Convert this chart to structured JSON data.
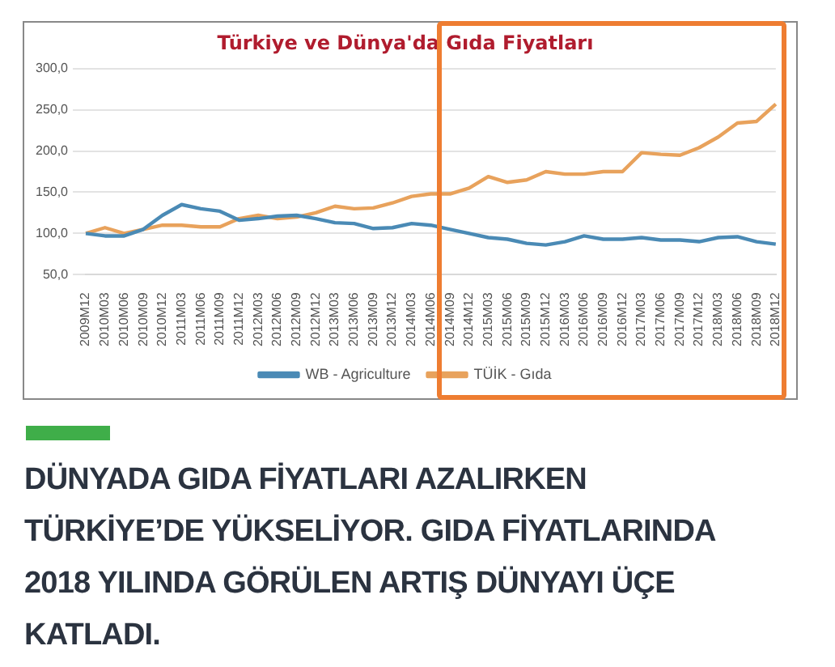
{
  "chart_data": {
    "type": "line",
    "title": "Türkiye ve Dünya'da Gıda Fiyatları",
    "categories": [
      "2009M12",
      "2010M03",
      "2010M06",
      "2010M09",
      "2010M12",
      "2011M03",
      "2011M06",
      "2011M09",
      "2011M12",
      "2012M03",
      "2012M06",
      "2012M09",
      "2012M12",
      "2013M03",
      "2013M06",
      "2013M09",
      "2013M12",
      "2014M03",
      "2014M06",
      "2014M09",
      "2014M12",
      "2015M03",
      "2015M06",
      "2015M09",
      "2015M12",
      "2016M03",
      "2016M06",
      "2016M09",
      "2016M12",
      "2017M03",
      "2017M06",
      "2017M09",
      "2017M12",
      "2018M03",
      "2018M06",
      "2018M09",
      "2018M12"
    ],
    "series": [
      {
        "name": "WB - Agriculture",
        "color": "#4a8ab5",
        "values": [
          100,
          97,
          97,
          105,
          122,
          135,
          130,
          127,
          116,
          118,
          121,
          122,
          118,
          113,
          112,
          106,
          107,
          112,
          110,
          105,
          100,
          95,
          93,
          88,
          86,
          90,
          97,
          93,
          93,
          95,
          92,
          92,
          90,
          95,
          96,
          90,
          87
        ]
      },
      {
        "name": "TÜİK - Gıda",
        "color": "#e8a25c",
        "values": [
          100,
          107,
          100,
          105,
          110,
          110,
          108,
          108,
          118,
          122,
          118,
          120,
          125,
          133,
          130,
          131,
          137,
          145,
          148,
          148,
          155,
          169,
          162,
          165,
          175,
          172,
          172,
          175,
          175,
          198,
          196,
          195,
          204,
          217,
          234,
          236,
          257
        ]
      }
    ],
    "ylim": [
      50,
      300
    ],
    "yticks": [
      {
        "value": 50,
        "label": "50,0"
      },
      {
        "value": 100,
        "label": "100,0"
      },
      {
        "value": 150,
        "label": "150,0"
      },
      {
        "value": 200,
        "label": "200,0"
      },
      {
        "value": 250,
        "label": "250,0"
      },
      {
        "value": 300,
        "label": "300,0"
      }
    ],
    "grid": "y",
    "legend": "bottom",
    "marker": "none",
    "line_style": "solid",
    "annotations": [
      "DÜNYADA GIDA FİYATLARI AZALIRKEN TÜRKİYE’DE YÜKSELİYOR. GIDA FİYATLARINDA 2018 YILINDA GÖRÜLEN ARTIŞ DÜNYAYI ÜÇE KATLADI."
    ]
  }
}
